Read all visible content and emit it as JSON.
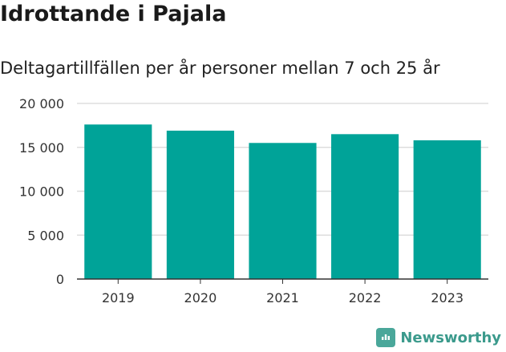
{
  "title": "Idrottande i Pajala",
  "subtitle": "Deltagartillfällen per år personer mellan 7 och 25 år",
  "brand": {
    "name": "Newsworthy",
    "color": "#3b9a8c"
  },
  "colors": {
    "bar": "#00a398",
    "grid": "#dddddd",
    "axis": "#333333"
  },
  "chart_data": {
    "type": "bar",
    "categories": [
      "2019",
      "2020",
      "2021",
      "2022",
      "2023"
    ],
    "values": [
      17600,
      16900,
      15500,
      16500,
      15800
    ],
    "ylim": [
      0,
      20000
    ],
    "yticks": [
      0,
      5000,
      10000,
      15000,
      20000
    ],
    "ytick_labels": [
      "0",
      "5 000",
      "10 000",
      "15 000",
      "20 000"
    ],
    "grid": true,
    "legend": false
  }
}
